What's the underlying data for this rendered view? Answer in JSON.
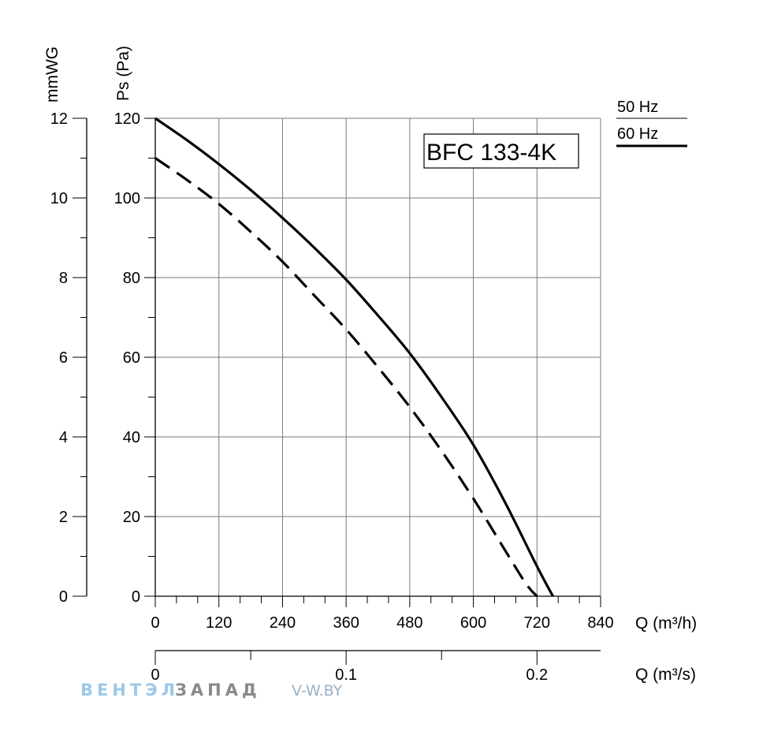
{
  "chart_data": {
    "type": "line",
    "title": "BFC 133-4K",
    "xlabel": "Q (m³/h)",
    "xlabel_secondary": "Q (m³/s)",
    "ylabel": "Ps (Pa)",
    "ylabel_secondary": "mmWG",
    "xlim": [
      0,
      840
    ],
    "ylim": [
      0,
      120
    ],
    "x_ticks": [
      "0",
      "120",
      "240",
      "360",
      "480",
      "600",
      "720",
      "840"
    ],
    "y_ticks": [
      "0",
      "20",
      "40",
      "60",
      "80",
      "100",
      "120"
    ],
    "x2_ticks": [
      "0",
      "0.1",
      "0.2"
    ],
    "x2_tick_values": [
      0,
      0.1,
      0.2
    ],
    "y2_ticks": [
      "0",
      "2",
      "4",
      "6",
      "8",
      "10",
      "12"
    ],
    "grid": true,
    "legend_position": "top-right",
    "series": [
      {
        "name": "50 Hz",
        "style": "dashed",
        "x": [
          0,
          60,
          120,
          180,
          240,
          300,
          360,
          420,
          480,
          540,
          600,
          660,
          700,
          720
        ],
        "y": [
          110,
          104.5,
          98.5,
          91.5,
          84,
          75.5,
          67,
          57.5,
          47.5,
          36.5,
          24.5,
          11.5,
          3,
          0
        ]
      },
      {
        "name": "60 Hz",
        "style": "solid",
        "x": [
          0,
          60,
          120,
          180,
          240,
          300,
          360,
          420,
          480,
          540,
          600,
          660,
          720,
          750
        ],
        "y": [
          120,
          114.5,
          108.5,
          102,
          95,
          87.5,
          79.5,
          70.5,
          61,
          50,
          38,
          23.5,
          7.5,
          0
        ]
      }
    ]
  },
  "watermark": {
    "brand_part1": "ВЕНТЭЛ",
    "brand_part2": "ЗАПАД",
    "url": "V-W.BY",
    "color_part1": "#9ec8e6",
    "color_part2": "#8a8a8a"
  }
}
